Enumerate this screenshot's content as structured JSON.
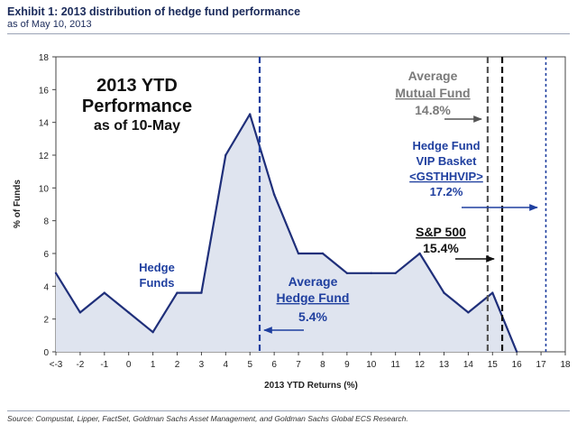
{
  "exhibit": {
    "title": "Exhibit 1: 2013 distribution of hedge fund performance",
    "subtitle": "as of May 10, 2013",
    "source": "Source: Compustat, Lipper, FactSet, Goldman Sachs Asset Management, and Goldman Sachs Global ECS Research."
  },
  "chart_data": {
    "type": "area",
    "title_lines": [
      "2013 YTD",
      "Performance",
      "as of 10-May"
    ],
    "xlabel": "2013 YTD Returns (%)",
    "ylabel": "% of Funds",
    "xlim": [
      -3,
      18
    ],
    "ylim": [
      0,
      18
    ],
    "x_ticks": [
      -3,
      -2,
      -1,
      0,
      1,
      2,
      3,
      4,
      5,
      6,
      7,
      8,
      9,
      10,
      11,
      12,
      13,
      14,
      15,
      16,
      17,
      18
    ],
    "x_tick_labels": [
      "<-3",
      "-2",
      "-1",
      "0",
      "1",
      "2",
      "3",
      "4",
      "5",
      "6",
      "7",
      "8",
      "9",
      "10",
      "11",
      "12",
      "13",
      "14",
      "15",
      "16",
      "17",
      "18"
    ],
    "y_ticks": [
      0,
      2,
      4,
      6,
      8,
      10,
      12,
      14,
      16,
      18
    ],
    "series": [
      {
        "name": "Hedge Funds",
        "color": "#1f2f7a",
        "fill": "#dfe4ef",
        "x": [
          -3,
          -2,
          -1,
          0,
          1,
          2,
          3,
          4,
          5,
          6,
          7,
          8,
          9,
          10,
          11,
          12,
          13,
          14,
          15,
          16
        ],
        "values": [
          4.8,
          2.4,
          3.6,
          2.4,
          1.2,
          3.6,
          3.6,
          12.0,
          14.5,
          9.6,
          6.0,
          6.0,
          4.8,
          4.8,
          4.8,
          6.0,
          3.6,
          2.4,
          3.6,
          0.0
        ]
      }
    ],
    "reference_lines": [
      {
        "name": "Average Hedge Fund",
        "x": 5.4,
        "color": "#1f3f9f",
        "style": "dashed"
      },
      {
        "name": "Average Mutual Fund",
        "x": 14.8,
        "color": "#555555",
        "style": "dashed"
      },
      {
        "name": "S&P 500",
        "x": 15.4,
        "color": "#111111",
        "style": "dashed"
      },
      {
        "name": "Hedge Fund VIP Basket",
        "x": 17.2,
        "color": "#1f3f9f",
        "style": "dotted"
      }
    ],
    "annotations": {
      "hedge_funds_label": [
        "Hedge",
        "Funds"
      ],
      "avg_hedge_fund": [
        "Average",
        "Hedge Fund",
        "5.4%"
      ],
      "avg_mutual_fund": [
        "Average",
        "Mutual Fund",
        "14.8%"
      ],
      "vip_basket": [
        "Hedge Fund",
        "VIP Basket",
        "<GSTHHVIP>",
        "17.2%"
      ],
      "sp500": [
        "S&P 500",
        "15.4%"
      ]
    }
  }
}
